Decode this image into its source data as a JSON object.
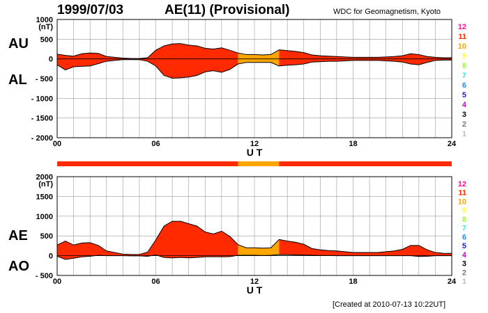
{
  "header": {
    "date": "1999/07/03",
    "title": "AE(11) (Provisional)",
    "organization": "WDC for Geomagnetism, Kyoto"
  },
  "footer": {
    "created": "[Created at 2010-07-13 10:22UT]"
  },
  "labels": {
    "au": "AU",
    "al": "AL",
    "ae": "AE",
    "ao": "AO"
  },
  "legend": {
    "items": [
      {
        "label": "12",
        "color": "#ff1493"
      },
      {
        "label": "11",
        "color": "#ff2a00"
      },
      {
        "label": "10",
        "color": "#ffa500"
      },
      {
        "label": "9",
        "color": "#ffff33"
      },
      {
        "label": "8",
        "color": "#99ff33"
      },
      {
        "label": "7",
        "color": "#33e6e6"
      },
      {
        "label": "6",
        "color": "#1e90ff"
      },
      {
        "label": "5",
        "color": "#2020cc"
      },
      {
        "label": "4",
        "color": "#cc00cc"
      },
      {
        "label": "3",
        "color": "#000000"
      },
      {
        "label": "2",
        "color": "#777777"
      },
      {
        "label": "1",
        "color": "#bbbbbb"
      }
    ]
  },
  "colors": {
    "stations11": "#ff2a00",
    "stations10": "#ffa500",
    "grid": "#999999"
  },
  "chart_data": [
    {
      "type": "area",
      "panel": "AU/AL",
      "unit": "(nT)",
      "xlabel": "U T",
      "xlim": [
        0,
        24
      ],
      "ylim": [
        -2000,
        1000
      ],
      "xticks": [
        "00",
        "06",
        "12",
        "18",
        "24"
      ],
      "yticks": [
        "1000",
        "500",
        "0",
        "- 500",
        "- 1000",
        "- 1500",
        "- 2000"
      ],
      "x": [
        0,
        0.5,
        1,
        1.5,
        2,
        2.5,
        3,
        3.5,
        4,
        4.5,
        5,
        5.5,
        6,
        6.5,
        7,
        7.5,
        8,
        8.5,
        9,
        9.5,
        10,
        10.5,
        11,
        11.5,
        12,
        12.5,
        13,
        13.5,
        14,
        14.5,
        15,
        15.5,
        16,
        16.5,
        17,
        17.5,
        18,
        18.5,
        19,
        19.5,
        20,
        20.5,
        21,
        21.5,
        22,
        22.5,
        23,
        23.5,
        24
      ],
      "series": [
        {
          "name": "AU",
          "values": [
            120,
            90,
            70,
            130,
            150,
            140,
            60,
            40,
            20,
            10,
            10,
            30,
            220,
            330,
            380,
            390,
            350,
            330,
            270,
            250,
            280,
            220,
            150,
            110,
            110,
            100,
            110,
            230,
            210,
            190,
            160,
            100,
            80,
            70,
            60,
            50,
            40,
            40,
            40,
            40,
            50,
            60,
            80,
            130,
            110,
            60,
            40,
            30,
            30
          ]
        },
        {
          "name": "AL",
          "values": [
            -150,
            -280,
            -200,
            -190,
            -180,
            -120,
            -60,
            -40,
            -20,
            -20,
            -20,
            -60,
            -180,
            -420,
            -490,
            -480,
            -460,
            -420,
            -330,
            -300,
            -340,
            -270,
            -130,
            -90,
            -90,
            -90,
            -90,
            -180,
            -160,
            -150,
            -130,
            -80,
            -70,
            -60,
            -60,
            -50,
            -40,
            -40,
            -40,
            -40,
            -50,
            -60,
            -80,
            -130,
            -150,
            -90,
            -40,
            -30,
            -30
          ]
        }
      ],
      "station_bar": [
        {
          "from": 0,
          "to": 11,
          "stations": "11"
        },
        {
          "from": 11,
          "to": 13.5,
          "stations": "10"
        },
        {
          "from": 13.5,
          "to": 24,
          "stations": "11"
        }
      ]
    },
    {
      "type": "area",
      "panel": "AE/AO",
      "unit": "(nT)",
      "xlabel": "U T",
      "xlim": [
        0,
        24
      ],
      "ylim": [
        -500,
        2000
      ],
      "xticks": [
        "00",
        "06",
        "12",
        "18",
        "24"
      ],
      "yticks": [
        "2000",
        "1500",
        "1000",
        "500",
        "0",
        "- 500"
      ],
      "x": [
        0,
        0.5,
        1,
        1.5,
        2,
        2.5,
        3,
        3.5,
        4,
        4.5,
        5,
        5.5,
        6,
        6.5,
        7,
        7.5,
        8,
        8.5,
        9,
        9.5,
        10,
        10.5,
        11,
        11.5,
        12,
        12.5,
        13,
        13.5,
        14,
        14.5,
        15,
        15.5,
        16,
        16.5,
        17,
        17.5,
        18,
        18.5,
        19,
        19.5,
        20,
        20.5,
        21,
        21.5,
        22,
        22.5,
        23,
        23.5,
        24
      ],
      "series": [
        {
          "name": "AE",
          "values": [
            270,
            370,
            270,
            320,
            330,
            260,
            120,
            80,
            40,
            30,
            30,
            90,
            400,
            750,
            870,
            870,
            810,
            750,
            600,
            550,
            620,
            490,
            280,
            200,
            200,
            190,
            200,
            410,
            370,
            340,
            290,
            180,
            150,
            130,
            120,
            100,
            80,
            80,
            80,
            80,
            100,
            120,
            160,
            260,
            260,
            150,
            80,
            60,
            60
          ]
        },
        {
          "name": "AO",
          "values": [
            -15,
            -95,
            -65,
            -30,
            -15,
            10,
            0,
            0,
            0,
            -5,
            -5,
            -15,
            20,
            -45,
            -55,
            -45,
            -55,
            -45,
            -30,
            -25,
            -30,
            -25,
            10,
            10,
            10,
            5,
            10,
            25,
            25,
            20,
            15,
            10,
            5,
            5,
            0,
            0,
            0,
            0,
            0,
            0,
            0,
            0,
            0,
            0,
            -20,
            -15,
            0,
            0,
            0
          ]
        }
      ]
    }
  ]
}
